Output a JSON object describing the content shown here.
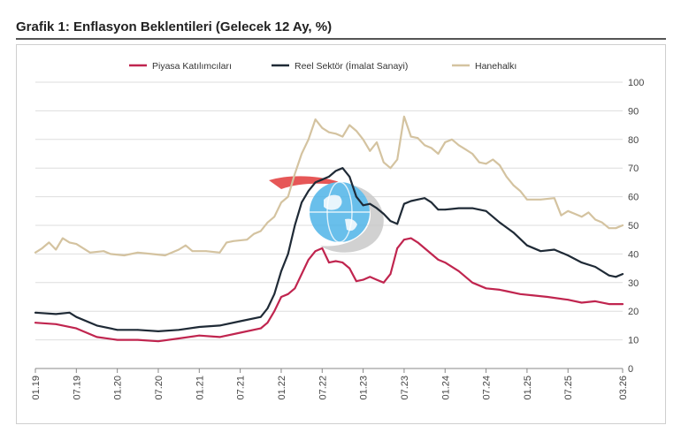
{
  "header": {
    "title": "Grafik 1: Enflasyon Beklentileri (Gelecek 12 Ay, %)"
  },
  "chart_data": {
    "type": "line",
    "title": "Grafik 1: Enflasyon Beklentileri (Gelecek 12 Ay, %)",
    "xlabel": "",
    "ylabel": "",
    "ylim": [
      0,
      100
    ],
    "yticks": [
      0,
      10,
      20,
      30,
      40,
      50,
      60,
      70,
      80,
      90,
      100
    ],
    "y_axis_side": "right",
    "grid": "horizontal",
    "legend_position": "top-center",
    "xrange": [
      "01.19",
      "03.26"
    ],
    "xtick_labels": [
      "01.19",
      "07.19",
      "01.20",
      "07.20",
      "01.21",
      "07.21",
      "01.22",
      "07.22",
      "01.23",
      "07.23",
      "01.24",
      "07.24",
      "01.25",
      "07.25",
      "03.26"
    ],
    "series": [
      {
        "name": "Piyasa Katılımcıları",
        "color": "#c0254f",
        "points": [
          [
            "01.19",
            16
          ],
          [
            "04.19",
            15.5
          ],
          [
            "07.19",
            14
          ],
          [
            "10.19",
            11
          ],
          [
            "01.20",
            10
          ],
          [
            "04.20",
            10
          ],
          [
            "07.20",
            9.5
          ],
          [
            "10.20",
            10.5
          ],
          [
            "01.21",
            11.5
          ],
          [
            "04.21",
            11
          ],
          [
            "07.21",
            12.5
          ],
          [
            "10.21",
            14
          ],
          [
            "11.21",
            16
          ],
          [
            "12.21",
            20
          ],
          [
            "01.22",
            25
          ],
          [
            "02.22",
            26
          ],
          [
            "03.22",
            28
          ],
          [
            "04.22",
            33
          ],
          [
            "05.22",
            38
          ],
          [
            "06.22",
            41
          ],
          [
            "07.22",
            42
          ],
          [
            "08.22",
            37
          ],
          [
            "09.22",
            37.5
          ],
          [
            "10.22",
            37
          ],
          [
            "11.22",
            35
          ],
          [
            "12.22",
            30.5
          ],
          [
            "01.23",
            31
          ],
          [
            "02.23",
            32
          ],
          [
            "03.23",
            31
          ],
          [
            "04.23",
            30
          ],
          [
            "05.23",
            33
          ],
          [
            "06.23",
            42
          ],
          [
            "07.23",
            45
          ],
          [
            "08.23",
            45.5
          ],
          [
            "09.23",
            44
          ],
          [
            "10.23",
            42
          ],
          [
            "11.23",
            40
          ],
          [
            "12.23",
            38
          ],
          [
            "01.24",
            37
          ],
          [
            "03.24",
            34
          ],
          [
            "05.24",
            30
          ],
          [
            "07.24",
            28
          ],
          [
            "09.24",
            27.5
          ],
          [
            "10.24",
            27
          ],
          [
            "12.24",
            26
          ],
          [
            "02.25",
            25.5
          ],
          [
            "04.25",
            25
          ],
          [
            "07.25",
            24
          ],
          [
            "09.25",
            23
          ],
          [
            "11.25",
            23.5
          ],
          [
            "01.26",
            22.5
          ],
          [
            "03.26",
            22.5
          ]
        ]
      },
      {
        "name": "Reel Sektör (İmalat Sanayi)",
        "color": "#1f2a36",
        "points": [
          [
            "01.19",
            19.5
          ],
          [
            "04.19",
            19
          ],
          [
            "06.19",
            19.5
          ],
          [
            "07.19",
            18
          ],
          [
            "10.19",
            15
          ],
          [
            "01.20",
            13.5
          ],
          [
            "04.20",
            13.5
          ],
          [
            "07.20",
            13
          ],
          [
            "10.20",
            13.5
          ],
          [
            "01.21",
            14.5
          ],
          [
            "04.21",
            15
          ],
          [
            "07.21",
            16.5
          ],
          [
            "10.21",
            18
          ],
          [
            "11.21",
            21
          ],
          [
            "12.21",
            26
          ],
          [
            "01.22",
            34
          ],
          [
            "02.22",
            40
          ],
          [
            "03.22",
            50
          ],
          [
            "04.22",
            58
          ],
          [
            "05.22",
            62
          ],
          [
            "06.22",
            65
          ],
          [
            "07.22",
            66
          ],
          [
            "08.22",
            67
          ],
          [
            "09.22",
            69
          ],
          [
            "10.22",
            70
          ],
          [
            "11.22",
            67
          ],
          [
            "12.22",
            60
          ],
          [
            "01.23",
            57
          ],
          [
            "02.23",
            57.5
          ],
          [
            "03.23",
            56
          ],
          [
            "04.23",
            54
          ],
          [
            "05.23",
            51.5
          ],
          [
            "06.23",
            50.5
          ],
          [
            "07.23",
            57.5
          ],
          [
            "08.23",
            58.5
          ],
          [
            "09.23",
            59
          ],
          [
            "10.23",
            59.5
          ],
          [
            "11.23",
            58
          ],
          [
            "12.23",
            55.5
          ],
          [
            "01.24",
            55.5
          ],
          [
            "03.24",
            56
          ],
          [
            "05.24",
            56
          ],
          [
            "07.24",
            55
          ],
          [
            "09.24",
            51
          ],
          [
            "11.24",
            47.5
          ],
          [
            "01.25",
            43
          ],
          [
            "03.25",
            41
          ],
          [
            "05.25",
            41.5
          ],
          [
            "07.25",
            39.5
          ],
          [
            "09.25",
            37
          ],
          [
            "11.25",
            35.5
          ],
          [
            "01.26",
            32.5
          ],
          [
            "02.26",
            32
          ],
          [
            "03.26",
            33
          ]
        ]
      },
      {
        "name": "Hanehalkı",
        "color": "#d4c3a0",
        "points": [
          [
            "01.19",
            40.5
          ],
          [
            "02.19",
            42
          ],
          [
            "03.19",
            44
          ],
          [
            "04.19",
            41.5
          ],
          [
            "05.19",
            45.5
          ],
          [
            "06.19",
            44
          ],
          [
            "07.19",
            43.5
          ],
          [
            "09.19",
            40.5
          ],
          [
            "11.19",
            41
          ],
          [
            "12.19",
            40
          ],
          [
            "02.20",
            39.5
          ],
          [
            "04.20",
            40.5
          ],
          [
            "06.20",
            40
          ],
          [
            "08.20",
            39.5
          ],
          [
            "10.20",
            41.5
          ],
          [
            "11.20",
            43
          ],
          [
            "12.20",
            41
          ],
          [
            "02.21",
            41
          ],
          [
            "04.21",
            40.5
          ],
          [
            "05.21",
            44
          ],
          [
            "06.21",
            44.5
          ],
          [
            "08.21",
            45
          ],
          [
            "09.21",
            47
          ],
          [
            "10.21",
            48
          ],
          [
            "11.21",
            51
          ],
          [
            "12.21",
            53
          ],
          [
            "01.22",
            58
          ],
          [
            "02.22",
            60
          ],
          [
            "03.22",
            68
          ],
          [
            "04.22",
            75
          ],
          [
            "05.22",
            80
          ],
          [
            "06.22",
            87
          ],
          [
            "07.22",
            84
          ],
          [
            "08.22",
            82.5
          ],
          [
            "09.22",
            82
          ],
          [
            "10.22",
            81
          ],
          [
            "11.22",
            85
          ],
          [
            "12.22",
            83
          ],
          [
            "01.23",
            80
          ],
          [
            "02.23",
            76
          ],
          [
            "03.23",
            79
          ],
          [
            "04.23",
            72
          ],
          [
            "05.23",
            70
          ],
          [
            "06.23",
            73
          ],
          [
            "07.23",
            88
          ],
          [
            "08.23",
            81
          ],
          [
            "09.23",
            80.5
          ],
          [
            "10.23",
            78
          ],
          [
            "11.23",
            77
          ],
          [
            "12.23",
            75
          ],
          [
            "01.24",
            79
          ],
          [
            "02.24",
            80
          ],
          [
            "03.24",
            78
          ],
          [
            "04.24",
            76.5
          ],
          [
            "05.24",
            75
          ],
          [
            "06.24",
            72
          ],
          [
            "07.24",
            71.5
          ],
          [
            "08.24",
            73
          ],
          [
            "09.24",
            71
          ],
          [
            "10.24",
            67
          ],
          [
            "11.24",
            64
          ],
          [
            "12.24",
            62
          ],
          [
            "01.25",
            59
          ],
          [
            "03.25",
            59
          ],
          [
            "05.25",
            59.5
          ],
          [
            "06.25",
            53.5
          ],
          [
            "07.25",
            55
          ],
          [
            "08.25",
            54
          ],
          [
            "09.25",
            53
          ],
          [
            "10.25",
            54.5
          ],
          [
            "11.25",
            52
          ],
          [
            "12.25",
            51
          ],
          [
            "01.26",
            49
          ],
          [
            "02.26",
            49
          ],
          [
            "03.26",
            50
          ]
        ]
      }
    ]
  }
}
